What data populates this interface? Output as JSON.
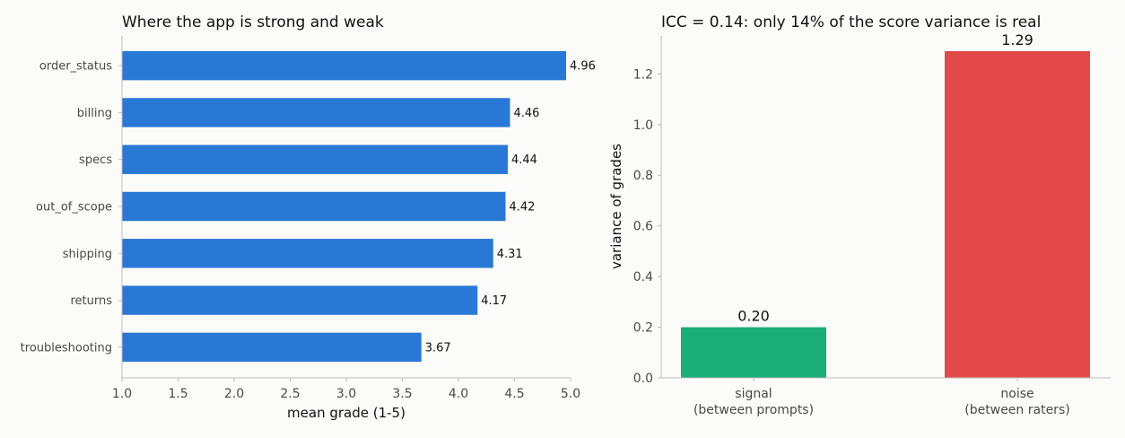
{
  "chart_data": [
    {
      "type": "bar",
      "orientation": "horizontal",
      "title": "Where the app is strong and weak",
      "xlabel": "mean grade (1-5)",
      "ylabel": "",
      "categories": [
        "order_status",
        "billing",
        "specs",
        "out_of_scope",
        "shipping",
        "returns",
        "troubleshooting"
      ],
      "values": [
        4.96,
        4.46,
        4.44,
        4.42,
        4.31,
        4.17,
        3.67
      ],
      "value_labels": [
        "4.96",
        "4.46",
        "4.44",
        "4.42",
        "4.31",
        "4.17",
        "3.67"
      ],
      "xlim": [
        1.0,
        5.0
      ],
      "xticks": [
        1.0,
        1.5,
        2.0,
        2.5,
        3.0,
        3.5,
        4.0,
        4.5,
        5.0
      ],
      "xtick_labels": [
        "1.0",
        "1.5",
        "2.0",
        "2.5",
        "3.0",
        "3.5",
        "4.0",
        "4.5",
        "5.0"
      ],
      "color": "#2a78d6",
      "grid": false
    },
    {
      "type": "bar",
      "orientation": "vertical",
      "title": "ICC = 0.14: only 14% of the score variance is real",
      "xlabel": "",
      "ylabel": "variance of grades",
      "categories": [
        {
          "line1": "signal",
          "line2": "(between prompts)"
        },
        {
          "line1": "noise",
          "line2": "(between raters)"
        }
      ],
      "values": [
        0.2,
        1.29
      ],
      "value_labels": [
        "0.20",
        "1.29"
      ],
      "colors": [
        "#1aaf78",
        "#e24a4a"
      ],
      "ylim": [
        0,
        1.35
      ],
      "yticks": [
        0.0,
        0.2,
        0.4,
        0.6,
        0.8,
        1.0,
        1.2
      ],
      "ytick_labels": [
        "0.0",
        "0.2",
        "0.4",
        "0.6",
        "0.8",
        "1.0",
        "1.2"
      ],
      "grid": false
    }
  ]
}
